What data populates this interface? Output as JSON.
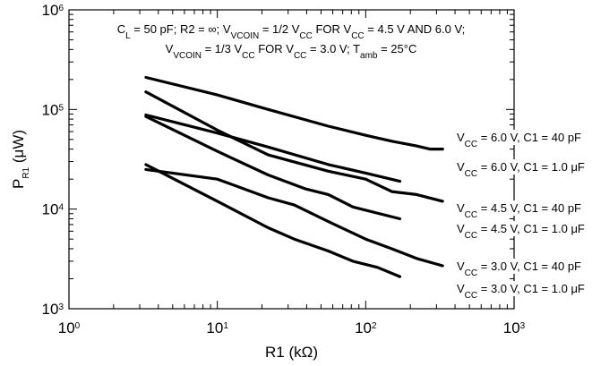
{
  "chart_data": {
    "type": "line",
    "x_scale": "log",
    "y_scale": "log",
    "xlim": [
      1,
      1000
    ],
    "ylim": [
      1000,
      1000000
    ],
    "grid": false,
    "xlabel": {
      "main": "R1 (k",
      "unit_symbol": "Ω",
      "close": ")"
    },
    "ylabel": {
      "main": "P",
      "sub": "R1",
      "rest": " (μW)"
    },
    "x_ticks": [
      {
        "value": 1,
        "base": "10",
        "exp": "0"
      },
      {
        "value": 10,
        "base": "10",
        "exp": "1"
      },
      {
        "value": 100,
        "base": "10",
        "exp": "2"
      },
      {
        "value": 1000,
        "base": "10",
        "exp": "3"
      }
    ],
    "y_ticks": [
      {
        "value": 1000,
        "base": "10",
        "exp": "3"
      },
      {
        "value": 10000,
        "base": "10",
        "exp": "4"
      },
      {
        "value": 100000,
        "base": "10",
        "exp": "5"
      },
      {
        "value": 1000000,
        "base": "10",
        "exp": "6"
      }
    ],
    "annotation_lines": [
      [
        {
          "t": "C"
        },
        {
          "t": "L",
          "sub": true
        },
        {
          "t": " = 50 pF; R2 = ∞; V"
        },
        {
          "t": "VCOIN",
          "sub": true
        },
        {
          "t": " = 1/2 V"
        },
        {
          "t": "CC",
          "sub": true
        },
        {
          "t": " FOR V"
        },
        {
          "t": "CC",
          "sub": true
        },
        {
          "t": " = 4.5 V AND 6.0 V;"
        }
      ],
      [
        {
          "t": "V"
        },
        {
          "t": "VCOIN",
          "sub": true
        },
        {
          "t": " = 1/3 V"
        },
        {
          "t": "CC",
          "sub": true
        },
        {
          "t": " FOR V"
        },
        {
          "t": "CC",
          "sub": true
        },
        {
          "t": " = 3.0 V; T"
        },
        {
          "t": "amb",
          "sub": true
        },
        {
          "t": " = 25°C"
        }
      ]
    ],
    "series": [
      {
        "label_prefix": "V",
        "label_sub": "CC",
        "label_rest": " = 6.0 V, C1 = 40 pF",
        "points": [
          [
            3.3,
            210000
          ],
          [
            10,
            140000
          ],
          [
            22,
            100000
          ],
          [
            56,
            68000
          ],
          [
            100,
            55000
          ],
          [
            150,
            48000
          ],
          [
            220,
            43000
          ],
          [
            270,
            40000
          ],
          [
            330,
            40000
          ]
        ]
      },
      {
        "label_prefix": "V",
        "label_sub": "CC",
        "label_rest": " = 6.0 V, C1 = 1.0 μF",
        "points": [
          [
            3.3,
            88000
          ],
          [
            10,
            58000
          ],
          [
            22,
            42000
          ],
          [
            56,
            28000
          ],
          [
            100,
            23000
          ],
          [
            170,
            19000
          ]
        ]
      },
      {
        "label_prefix": "V",
        "label_sub": "CC",
        "label_rest": " = 4.5 V, C1 = 40 pF",
        "points": [
          [
            3.3,
            150000
          ],
          [
            10,
            62000
          ],
          [
            22,
            35000
          ],
          [
            56,
            24000
          ],
          [
            100,
            20000
          ],
          [
            150,
            15000
          ],
          [
            220,
            14000
          ],
          [
            330,
            12000
          ]
        ]
      },
      {
        "label_prefix": "V",
        "label_sub": "CC",
        "label_rest": " = 4.5 V, C1 = 1.0 μF",
        "points": [
          [
            3.3,
            85000
          ],
          [
            10,
            38000
          ],
          [
            22,
            22000
          ],
          [
            39,
            16000
          ],
          [
            56,
            14000
          ],
          [
            82,
            10500
          ],
          [
            170,
            8000
          ]
        ]
      },
      {
        "label_prefix": "V",
        "label_sub": "CC",
        "label_rest": " = 3.0 V, C1 = 40 pF",
        "points": [
          [
            3.3,
            25000
          ],
          [
            10,
            20000
          ],
          [
            22,
            13000
          ],
          [
            33,
            11000
          ],
          [
            56,
            7500
          ],
          [
            100,
            5000
          ],
          [
            150,
            4000
          ],
          [
            220,
            3200
          ],
          [
            330,
            2700
          ]
        ]
      },
      {
        "label_prefix": "V",
        "label_sub": "CC",
        "label_rest": " = 3.0 V, C1 = 1.0 μF",
        "points": [
          [
            3.3,
            28000
          ],
          [
            10,
            12000
          ],
          [
            22,
            6500
          ],
          [
            33,
            5000
          ],
          [
            56,
            3800
          ],
          [
            82,
            3000
          ],
          [
            120,
            2600
          ],
          [
            170,
            2100
          ]
        ]
      }
    ]
  }
}
